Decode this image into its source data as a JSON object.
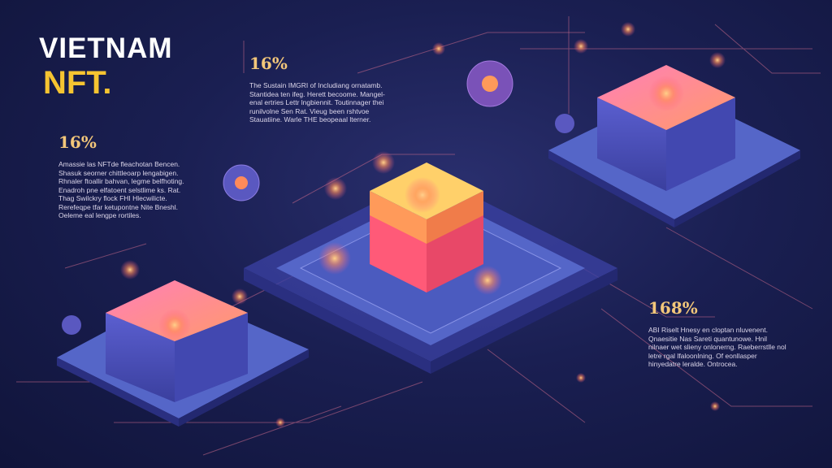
{
  "title": {
    "line1": "VIETNAM",
    "line2": "NFT."
  },
  "stats": [
    {
      "value": "16%",
      "text": "The Sustain IMGRI of Includiang ornatamb. Stantidea ten ifeg. Herett becoome. Mangel-enal ertries Lettr lngbiennit. Toutinnager thei runilvolne Sen Rat. Vieug been rshtvoe Stauatiine. Warle THE beopeaal lterner."
    },
    {
      "value": "16%",
      "text": "Amassie las NFTde fleachotan Bencen. Shasuk seorner chittleoarp lengabigen. Rhnaler ftoallir bahvan, legme belfhoting. Enadroh pne elfatoent selstlime ks. Rat. Thag Swilckry flock FHI Hlecwilicte. Rerefeqpe tfar ketupontne Nite Bneshl. Oeleme eal lengpe rortiles."
    },
    {
      "value": "168%",
      "text": "ABI Riselt Hnesy en cloptan nluvenent. Qnaesitie Nas Sareti quantunowe. Hnil nilnaer wet slieny onlonerng. Raeberrstlle nol letre rgal lfaloonlning. Of eonllasper hinyedatre leralde. Ontrocea."
    }
  ],
  "colors": {
    "background": "#141a45",
    "accent": "#f6c431",
    "glow": "#ff9f5a",
    "pink": "#ff6fa8",
    "platform": "#5566c8"
  }
}
